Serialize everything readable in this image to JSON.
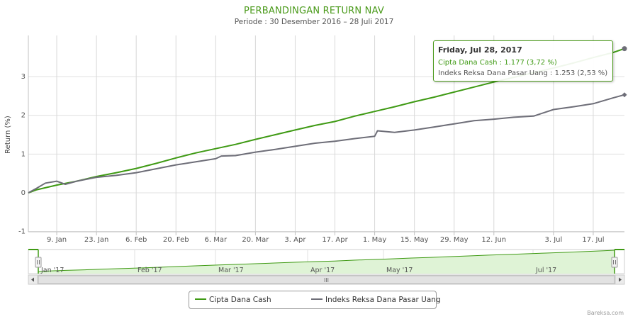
{
  "title": "PERBANDINGAN RETURN NAV",
  "subtitle": "Periode : 30 Desember 2016 – 28 Juli 2017",
  "colors": {
    "green": "#3f9a14",
    "gray": "#6e6e78",
    "accent": "#4a9a1a"
  },
  "tooltip": {
    "date": "Friday, Jul 28, 2017",
    "row1": "Cipta Dana Cash : 1.177 (3,72 %)",
    "row2": "Indeks Reksa Dana Pasar Uang : 1.253 (2,53 %)"
  },
  "legend": {
    "item1": "Cipta Dana Cash",
    "item2": "Indeks Reksa Dana Pasar Uang"
  },
  "navigator": {
    "ticks": [
      "Jan '17",
      "Feb '17",
      "Mar '17",
      "Apr '17",
      "May '17",
      "Jul '17"
    ],
    "scroll_grip": "III"
  },
  "credits": "Bareksa.com",
  "chart_data": {
    "type": "line",
    "xlabel": "",
    "ylabel": "Return (%)",
    "ylim": [
      -1,
      4
    ],
    "yticks": [
      "-1",
      "0",
      "1",
      "2",
      "3"
    ],
    "ytick_values": [
      -1,
      0,
      1,
      2,
      3
    ],
    "xlim": [
      "2016-12-30",
      "2017-07-28"
    ],
    "xticks": [
      "9. Jan",
      "23. Jan",
      "6. Feb",
      "20. Feb",
      "6. Mar",
      "20. Mar",
      "3. Apr",
      "17. Apr",
      "1. May",
      "15. May",
      "29. May",
      "12. Jun",
      "3. Jul",
      "17. Jul"
    ],
    "xtick_dates": [
      "2017-01-09",
      "2017-01-23",
      "2017-02-06",
      "2017-02-20",
      "2017-03-06",
      "2017-03-20",
      "2017-04-03",
      "2017-04-17",
      "2017-05-01",
      "2017-05-15",
      "2017-05-29",
      "2017-06-12",
      "2017-07-03",
      "2017-07-17"
    ],
    "grid": true,
    "legend_position": "bottom-center",
    "series": [
      {
        "name": "Cipta Dana Cash",
        "color": "#3f9a14",
        "x": [
          "2016-12-30",
          "2017-01-02",
          "2017-01-09",
          "2017-01-16",
          "2017-01-23",
          "2017-01-30",
          "2017-02-06",
          "2017-02-13",
          "2017-02-20",
          "2017-02-27",
          "2017-03-06",
          "2017-03-13",
          "2017-03-20",
          "2017-03-27",
          "2017-04-03",
          "2017-04-10",
          "2017-04-17",
          "2017-04-24",
          "2017-05-01",
          "2017-05-08",
          "2017-05-15",
          "2017-05-22",
          "2017-05-29",
          "2017-06-05",
          "2017-06-12",
          "2017-06-19",
          "2017-06-26",
          "2017-07-03",
          "2017-07-10",
          "2017-07-17",
          "2017-07-24",
          "2017-07-28"
        ],
        "y": [
          0.0,
          0.08,
          0.2,
          0.3,
          0.42,
          0.52,
          0.63,
          0.76,
          0.9,
          1.03,
          1.14,
          1.25,
          1.38,
          1.5,
          1.62,
          1.74,
          1.84,
          1.98,
          2.1,
          2.22,
          2.35,
          2.47,
          2.6,
          2.73,
          2.86,
          2.98,
          3.1,
          3.22,
          3.35,
          3.49,
          3.62,
          3.72
        ]
      },
      {
        "name": "Indeks Reksa Dana Pasar Uang",
        "color": "#6e6e78",
        "x": [
          "2016-12-30",
          "2017-01-02",
          "2017-01-05",
          "2017-01-09",
          "2017-01-12",
          "2017-01-16",
          "2017-01-23",
          "2017-01-30",
          "2017-02-06",
          "2017-02-13",
          "2017-02-20",
          "2017-02-27",
          "2017-03-06",
          "2017-03-08",
          "2017-03-13",
          "2017-03-20",
          "2017-03-27",
          "2017-04-03",
          "2017-04-10",
          "2017-04-17",
          "2017-04-24",
          "2017-05-01",
          "2017-05-02",
          "2017-05-08",
          "2017-05-15",
          "2017-05-22",
          "2017-05-29",
          "2017-06-05",
          "2017-06-12",
          "2017-06-19",
          "2017-06-26",
          "2017-07-03",
          "2017-07-10",
          "2017-07-17",
          "2017-07-24",
          "2017-07-28"
        ],
        "y": [
          0.0,
          0.12,
          0.25,
          0.3,
          0.22,
          0.3,
          0.4,
          0.45,
          0.52,
          0.62,
          0.72,
          0.8,
          0.88,
          0.95,
          0.96,
          1.05,
          1.12,
          1.2,
          1.28,
          1.33,
          1.4,
          1.46,
          1.6,
          1.56,
          1.62,
          1.7,
          1.78,
          1.86,
          1.9,
          1.95,
          1.98,
          2.15,
          2.22,
          2.3,
          2.45,
          2.53
        ]
      }
    ]
  }
}
